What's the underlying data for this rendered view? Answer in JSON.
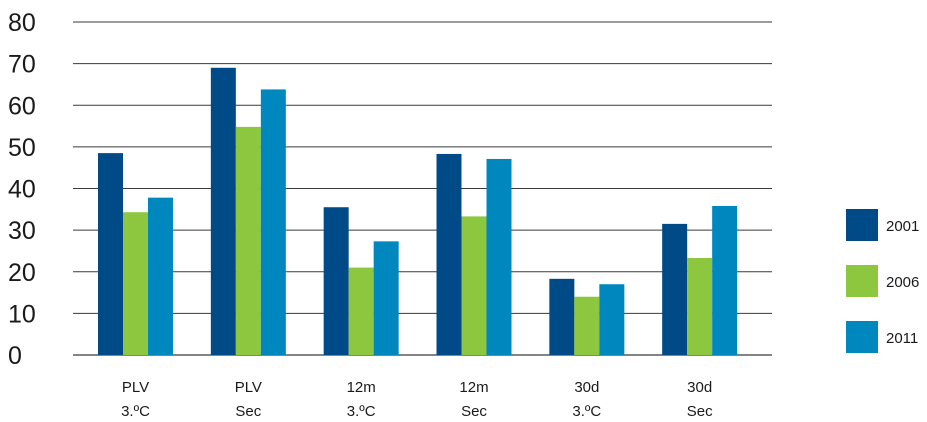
{
  "chart_data": {
    "type": "bar",
    "categories": [
      [
        "PLV",
        "3.ºC"
      ],
      [
        "PLV",
        "Sec"
      ],
      [
        "12m",
        "3.ºC"
      ],
      [
        "12m",
        "Sec"
      ],
      [
        "30d",
        "3.ºC"
      ],
      [
        "30d",
        "Sec"
      ]
    ],
    "series": [
      {
        "name": "2001",
        "color": "#004a87",
        "values": [
          48.5,
          69,
          35.5,
          48.3,
          18.3,
          31.5
        ]
      },
      {
        "name": "2006",
        "color": "#8dc63f",
        "values": [
          34.3,
          54.8,
          21,
          33.3,
          14,
          23.3
        ]
      },
      {
        "name": "2011",
        "color": "#0087bd",
        "values": [
          37.8,
          63.8,
          27.3,
          47.1,
          17,
          35.8
        ]
      }
    ],
    "ylim": [
      0,
      80
    ],
    "yticks": [
      0,
      10,
      20,
      30,
      40,
      50,
      60,
      70,
      80
    ],
    "grid": true,
    "legend_position": "right",
    "title": "",
    "xlabel": "",
    "ylabel": ""
  }
}
